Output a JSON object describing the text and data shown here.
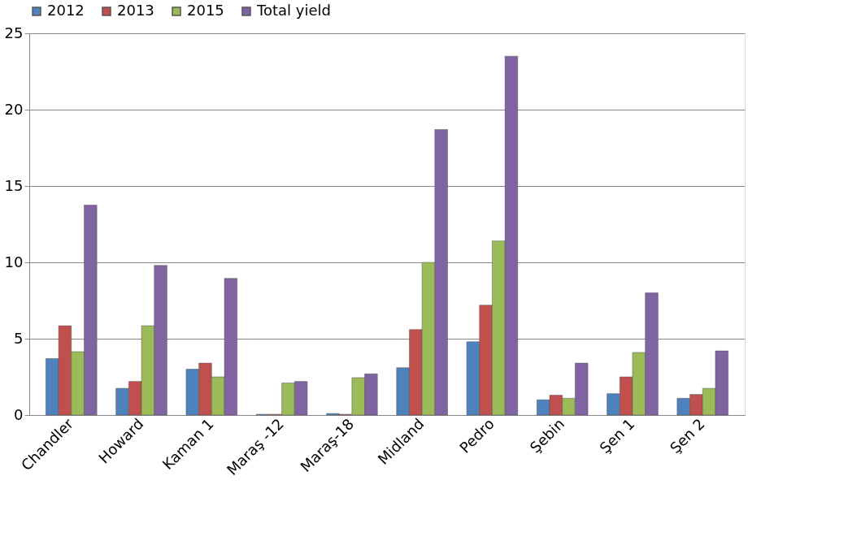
{
  "chart_data": {
    "type": "bar",
    "categories": [
      "Chandler",
      "Howard",
      "Kaman 1",
      "Maraş -12",
      "Maraş-18",
      "Midland",
      "Pedro",
      "Şebin",
      "Şen 1",
      "Şen 2"
    ],
    "series": [
      {
        "name": "2012",
        "color": "#4f81bd",
        "values": [
          3.7,
          1.75,
          3.0,
          0.05,
          0.1,
          3.1,
          4.8,
          1.0,
          1.4,
          1.1
        ]
      },
      {
        "name": "2013",
        "color": "#c0504d",
        "values": [
          5.85,
          2.2,
          3.4,
          0.05,
          0.05,
          5.6,
          7.2,
          1.3,
          2.5,
          1.35
        ]
      },
      {
        "name": "2015",
        "color": "#9bbb59",
        "values": [
          4.15,
          5.85,
          2.5,
          2.1,
          2.45,
          10.0,
          11.4,
          1.1,
          4.1,
          1.75
        ]
      },
      {
        "name": "Total yield",
        "color": "#8064a2",
        "values": [
          13.75,
          9.8,
          8.95,
          2.2,
          2.7,
          18.7,
          23.5,
          3.4,
          8.0,
          4.2
        ]
      }
    ],
    "ylim": [
      0,
      25
    ],
    "yticks": [
      0,
      5,
      10,
      15,
      20,
      25
    ],
    "grid": "y",
    "legend": "top"
  }
}
